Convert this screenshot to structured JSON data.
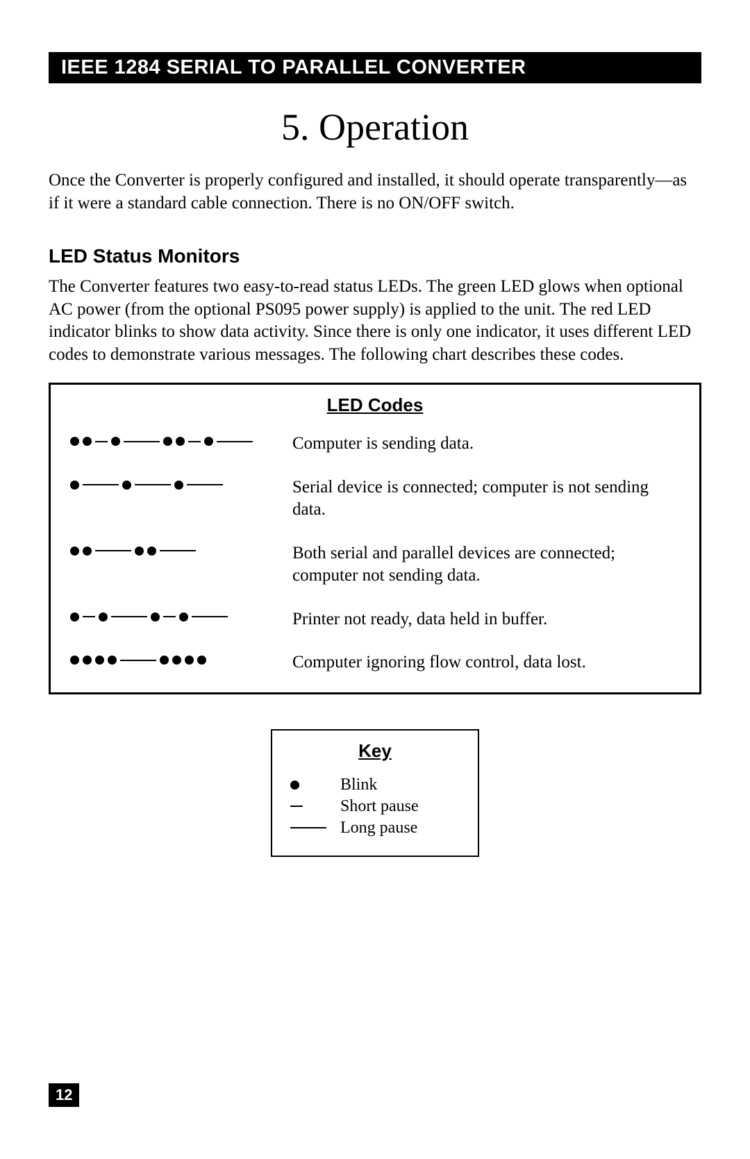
{
  "header": "IEEE 1284 SERIAL TO PARALLEL CONVERTER",
  "chapter_title": "5. Operation",
  "intro_text": "Once the Converter is properly configured and installed, it should operate transparently—as if it were a standard cable connection. There is no ON/OFF switch.",
  "section_heading": "LED Status Monitors",
  "section_text": "The Converter features two easy-to-read status LEDs. The green LED glows when optional AC power (from the optional PS095 power supply) is applied to the unit. The red LED indicator blinks to show data activity. Since there is only one indicator, it uses different LED codes to demonstrate various messages. The following chart describes these codes.",
  "led_codes": {
    "title": "LED Codes",
    "rows": [
      {
        "pattern": [
          "dot",
          "dot",
          "short",
          "dot",
          "long",
          "dot",
          "dot",
          "short",
          "dot",
          "long"
        ],
        "desc": "Computer is sending data."
      },
      {
        "pattern": [
          "dot",
          "long",
          "dot",
          "long",
          "dot",
          "long"
        ],
        "desc": "Serial device is connected; computer is not sending data."
      },
      {
        "pattern": [
          "dot",
          "dot",
          "long",
          "dot",
          "dot",
          "long"
        ],
        "desc": "Both serial and parallel devices are connected; computer not sending data."
      },
      {
        "pattern": [
          "dot",
          "short",
          "dot",
          "long",
          "dot",
          "short",
          "dot",
          "long"
        ],
        "desc": "Printer not ready, data held in buffer."
      },
      {
        "pattern": [
          "dot",
          "dot",
          "dot",
          "dot",
          "long",
          "dot",
          "dot",
          "dot",
          "dot"
        ],
        "desc": "Computer ignoring flow control, data lost."
      }
    ]
  },
  "key": {
    "title": "Key",
    "rows": [
      {
        "sym": "dot",
        "label": "Blink"
      },
      {
        "sym": "short",
        "label": "Short pause"
      },
      {
        "sym": "long",
        "label": "Long pause"
      }
    ]
  },
  "page_number": "12"
}
